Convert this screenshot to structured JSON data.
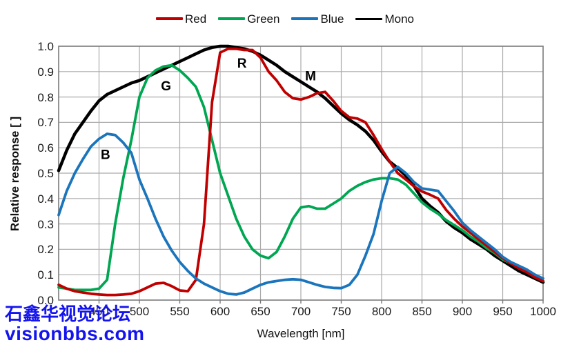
{
  "chart_data": {
    "type": "line",
    "title": "",
    "xlabel": "Wavelength [nm]",
    "ylabel": "Relative response [ ]",
    "xlim": [
      400,
      1000
    ],
    "ylim": [
      0.0,
      1.0
    ],
    "grid": true,
    "legend_position": "top-center",
    "x_tick_labels": [
      "450",
      "500",
      "550",
      "600",
      "650",
      "700",
      "750",
      "800",
      "850",
      "900",
      "950",
      "1000"
    ],
    "x_tick_values": [
      450,
      500,
      550,
      600,
      650,
      700,
      750,
      800,
      850,
      900,
      950,
      1000
    ],
    "y_tick_labels": [
      "0.0",
      "0.1",
      "0.2",
      "0.3",
      "0.4",
      "0.5",
      "0.6",
      "0.7",
      "0.8",
      "0.9",
      "1.0"
    ],
    "y_tick_values": [
      0.0,
      0.1,
      0.2,
      0.3,
      0.4,
      0.5,
      0.6,
      0.7,
      0.8,
      0.9,
      1.0
    ],
    "x": [
      400,
      410,
      420,
      430,
      440,
      450,
      460,
      470,
      480,
      490,
      500,
      510,
      520,
      530,
      540,
      550,
      560,
      570,
      580,
      590,
      600,
      610,
      620,
      630,
      640,
      650,
      660,
      670,
      680,
      690,
      700,
      710,
      720,
      730,
      740,
      750,
      760,
      770,
      780,
      790,
      800,
      810,
      820,
      830,
      840,
      850,
      860,
      870,
      880,
      890,
      900,
      910,
      920,
      930,
      940,
      950,
      960,
      970,
      980,
      990,
      1000
    ],
    "series": [
      {
        "name": "Mono",
        "color": "#000000",
        "stroke_width": 4.5,
        "values": [
          0.51,
          0.59,
          0.655,
          0.7,
          0.745,
          0.785,
          0.81,
          0.825,
          0.84,
          0.855,
          0.865,
          0.88,
          0.895,
          0.91,
          0.925,
          0.94,
          0.955,
          0.97,
          0.985,
          0.995,
          1.0,
          1.0,
          0.995,
          0.99,
          0.98,
          0.965,
          0.945,
          0.925,
          0.9,
          0.88,
          0.86,
          0.84,
          0.82,
          0.795,
          0.765,
          0.735,
          0.71,
          0.69,
          0.665,
          0.63,
          0.585,
          0.545,
          0.52,
          0.49,
          0.45,
          0.4,
          0.37,
          0.345,
          0.31,
          0.285,
          0.265,
          0.24,
          0.22,
          0.2,
          0.175,
          0.155,
          0.135,
          0.115,
          0.1,
          0.085,
          0.07
        ]
      },
      {
        "name": "Green",
        "color": "#00A651",
        "stroke_width": 3.8,
        "values": [
          0.05,
          0.045,
          0.04,
          0.04,
          0.04,
          0.045,
          0.08,
          0.3,
          0.48,
          0.63,
          0.8,
          0.875,
          0.905,
          0.92,
          0.925,
          0.905,
          0.875,
          0.84,
          0.76,
          0.63,
          0.5,
          0.41,
          0.32,
          0.25,
          0.2,
          0.175,
          0.165,
          0.19,
          0.25,
          0.32,
          0.365,
          0.37,
          0.36,
          0.36,
          0.38,
          0.4,
          0.43,
          0.45,
          0.465,
          0.475,
          0.48,
          0.48,
          0.475,
          0.455,
          0.42,
          0.385,
          0.36,
          0.34,
          0.315,
          0.295,
          0.275,
          0.25,
          0.23,
          0.205,
          0.185,
          0.16,
          0.145,
          0.125,
          0.11,
          0.09,
          0.075
        ]
      },
      {
        "name": "Red",
        "color": "#C00000",
        "stroke_width": 3.8,
        "values": [
          0.06,
          0.045,
          0.035,
          0.03,
          0.025,
          0.022,
          0.02,
          0.02,
          0.022,
          0.025,
          0.035,
          0.05,
          0.065,
          0.068,
          0.055,
          0.038,
          0.035,
          0.08,
          0.3,
          0.78,
          0.975,
          0.99,
          0.99,
          0.985,
          0.985,
          0.955,
          0.9,
          0.865,
          0.82,
          0.795,
          0.79,
          0.8,
          0.815,
          0.82,
          0.785,
          0.745,
          0.72,
          0.715,
          0.7,
          0.65,
          0.595,
          0.545,
          0.5,
          0.475,
          0.448,
          0.428,
          0.415,
          0.4,
          0.355,
          0.32,
          0.29,
          0.265,
          0.24,
          0.215,
          0.19,
          0.165,
          0.145,
          0.125,
          0.11,
          0.09,
          0.075
        ]
      },
      {
        "name": "Blue",
        "color": "#1B75BC",
        "stroke_width": 3.8,
        "values": [
          0.335,
          0.43,
          0.5,
          0.555,
          0.605,
          0.635,
          0.655,
          0.65,
          0.62,
          0.58,
          0.475,
          0.4,
          0.32,
          0.25,
          0.195,
          0.15,
          0.115,
          0.085,
          0.065,
          0.05,
          0.035,
          0.025,
          0.022,
          0.03,
          0.045,
          0.06,
          0.07,
          0.075,
          0.08,
          0.082,
          0.08,
          0.07,
          0.06,
          0.052,
          0.048,
          0.047,
          0.06,
          0.1,
          0.175,
          0.26,
          0.39,
          0.5,
          0.525,
          0.5,
          0.465,
          0.44,
          0.435,
          0.43,
          0.39,
          0.35,
          0.305,
          0.275,
          0.25,
          0.225,
          0.2,
          0.17,
          0.15,
          0.135,
          0.12,
          0.1,
          0.085
        ]
      }
    ],
    "annotations": [
      {
        "text": "B",
        "nm": 458,
        "value": 0.575
      },
      {
        "text": "G",
        "nm": 533,
        "value": 0.845
      },
      {
        "text": "R",
        "nm": 627,
        "value": 0.935
      },
      {
        "text": "M",
        "nm": 712,
        "value": 0.885
      }
    ]
  },
  "legend": {
    "items": [
      {
        "label": "Red",
        "color": "#C00000"
      },
      {
        "label": "Green",
        "color": "#00A651"
      },
      {
        "label": "Blue",
        "color": "#1B75BC"
      },
      {
        "label": "Mono",
        "color": "#000000"
      }
    ]
  },
  "colors": {
    "grid": "#ABABAB",
    "frame": "#7A7A7A",
    "tick_text": "#1a1a1a",
    "watermark": "#1414EF"
  },
  "watermark": {
    "line1": "石鑫华视觉论坛",
    "line2": "visionbbs.com"
  }
}
